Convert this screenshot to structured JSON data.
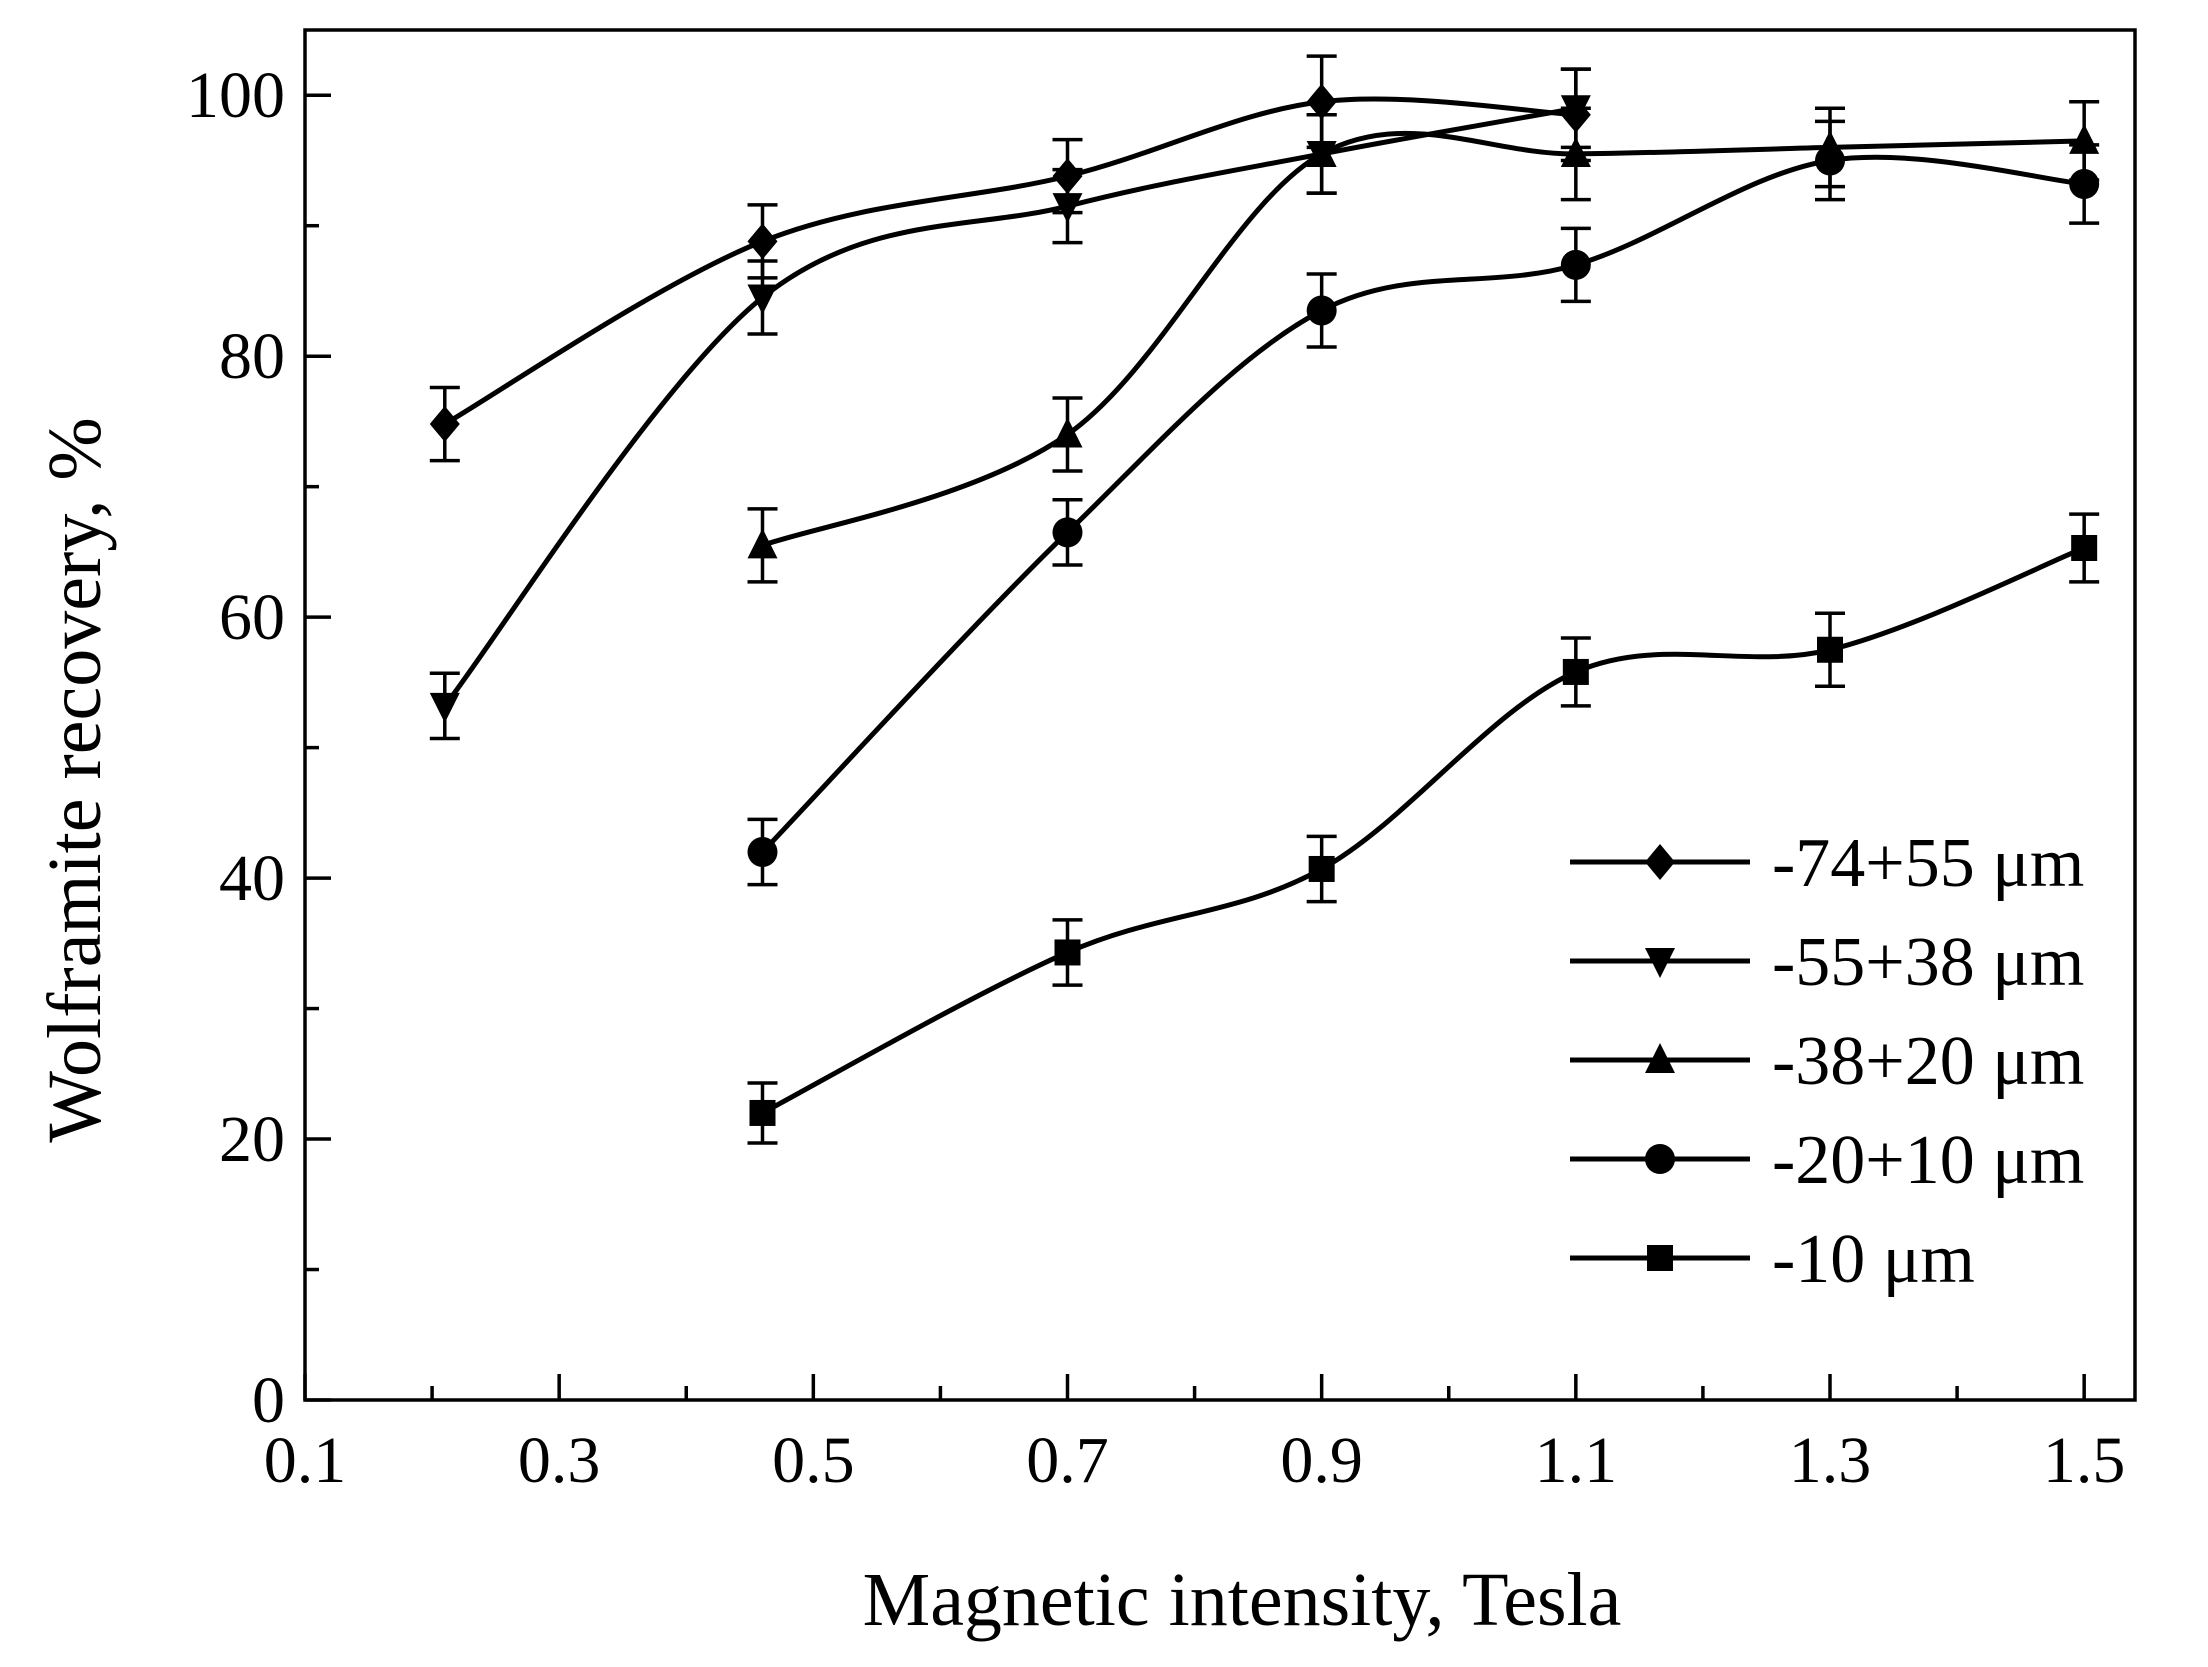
{
  "chart_data": {
    "type": "line",
    "title": "",
    "xlabel": "Magnetic intensity, Tesla",
    "ylabel": "Wolframite recovery, %",
    "xlim": [
      0.1,
      1.54
    ],
    "ylim": [
      0,
      105
    ],
    "x_ticks": [
      0.1,
      0.3,
      0.5,
      0.7,
      0.9,
      1.1,
      1.3,
      1.5
    ],
    "x_tick_labels": [
      "0.1",
      "0.3",
      "0.5",
      "0.7",
      "0.9",
      "1.1",
      "1.3",
      "1.5"
    ],
    "x_minor_ticks": [
      0.2,
      0.4,
      0.6,
      0.8,
      1.0,
      1.2,
      1.4
    ],
    "y_ticks": [
      0,
      20,
      40,
      60,
      80,
      100
    ],
    "y_tick_labels": [
      "0",
      "20",
      "40",
      "60",
      "80",
      "100"
    ],
    "y_minor_ticks": [
      10,
      30,
      50,
      70,
      90
    ],
    "grid": false,
    "legend_position": "bottom-right",
    "series": [
      {
        "name": "-74+55 μm",
        "marker": "diamond",
        "x": [
          0.21,
          0.46,
          0.7,
          0.9,
          1.1
        ],
        "y": [
          74.8,
          88.8,
          93.8,
          99.5,
          98.5
        ],
        "err": [
          2.8,
          2.8,
          2.8,
          3.5,
          3.5
        ]
      },
      {
        "name": "-55+38 μm",
        "marker": "triangle-down",
        "x": [
          0.21,
          0.46,
          0.7,
          0.9,
          1.1
        ],
        "y": [
          53.2,
          84.5,
          91.5,
          95.5,
          99.0
        ],
        "err": [
          2.5,
          2.8,
          2.8,
          3.0,
          3.0
        ]
      },
      {
        "name": "-38+20 μm",
        "marker": "triangle-up",
        "x": [
          0.46,
          0.7,
          0.9,
          1.1,
          1.3,
          1.5
        ],
        "y": [
          65.5,
          74.0,
          95.5,
          95.5,
          96.0,
          96.5
        ],
        "err": [
          2.8,
          2.8,
          3.0,
          3.5,
          3.0,
          3.0
        ]
      },
      {
        "name": "-20+10 μm",
        "marker": "circle",
        "x": [
          0.46,
          0.7,
          0.9,
          1.1,
          1.3,
          1.5
        ],
        "y": [
          42.0,
          66.5,
          83.5,
          87.0,
          95.0,
          93.2
        ],
        "err": [
          2.5,
          2.5,
          2.8,
          2.8,
          3.0,
          3.0
        ]
      },
      {
        "name": "-10 μm",
        "marker": "square",
        "x": [
          0.46,
          0.7,
          0.9,
          1.1,
          1.3,
          1.5
        ],
        "y": [
          22.0,
          34.3,
          40.7,
          55.8,
          57.5,
          65.3
        ],
        "err": [
          2.3,
          2.5,
          2.5,
          2.6,
          2.8,
          2.6
        ]
      }
    ]
  }
}
